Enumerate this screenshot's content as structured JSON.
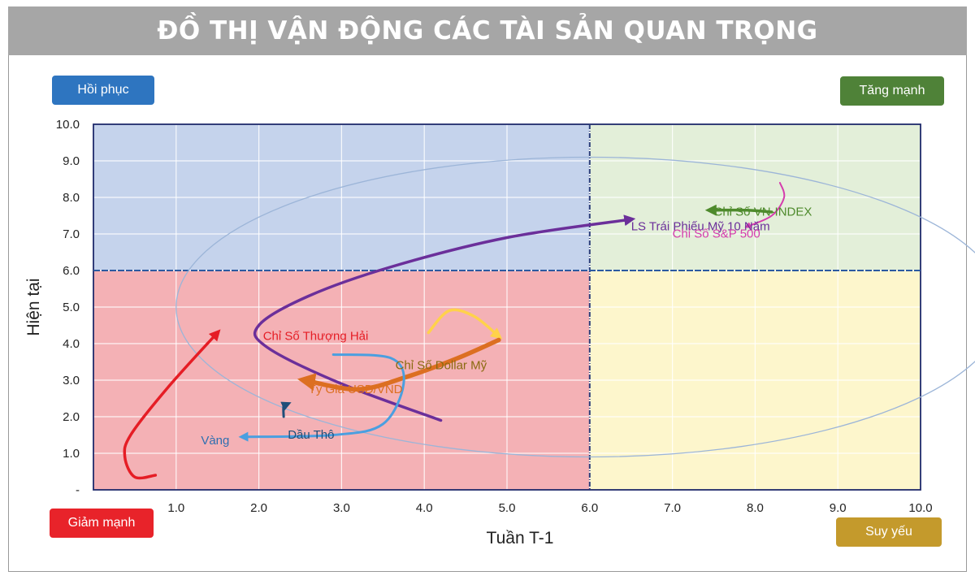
{
  "header": {
    "title": "ĐỒ THỊ VẬN ĐỘNG CÁC TÀI SẢN QUAN TRỌNG"
  },
  "quadrants": {
    "top_left": {
      "label": "Hồi phục",
      "color": "#2e75c0"
    },
    "top_right": {
      "label": "Tăng mạnh",
      "color": "#4f8238"
    },
    "bottom_left": {
      "label": "Giảm mạnh",
      "color": "#e8232a"
    },
    "bottom_right": {
      "label": "Suy yếu",
      "color": "#c49a2c"
    }
  },
  "chart_data": {
    "type": "line",
    "title": "ĐỒ THỊ VẬN ĐỘNG CÁC TÀI SẢN QUAN TRỌNG",
    "xlabel": "Tuần T-1",
    "ylabel": "Hiện tại",
    "xlim": [
      0,
      10
    ],
    "ylim": [
      0,
      10
    ],
    "x_ticks": [
      "1.0",
      "2.0",
      "3.0",
      "4.0",
      "5.0",
      "6.0",
      "7.0",
      "8.0",
      "9.0",
      "10.0"
    ],
    "y_ticks": [
      "-",
      "1.0",
      "2.0",
      "3.0",
      "4.0",
      "5.0",
      "6.0",
      "7.0",
      "8.0",
      "9.0",
      "10.0"
    ],
    "grid": true,
    "dividers": {
      "x": 6.0,
      "y": 6.0
    },
    "quadrant_fills": {
      "top_left": "#c5d3ec",
      "top_right": "#e3efd9",
      "bottom_left": "#f4b1b5",
      "bottom_right": "#fdf6cc"
    },
    "series": [
      {
        "name": "LS Trái Phiếu Mỹ 10 Năm",
        "color": "#6b2f9a",
        "width": 3.5,
        "points": [
          [
            4.2,
            1.9
          ],
          [
            3.0,
            2.9
          ],
          [
            2.1,
            3.9
          ],
          [
            2.0,
            4.5
          ],
          [
            2.6,
            5.3
          ],
          [
            3.6,
            6.1
          ],
          [
            5.0,
            6.9
          ],
          [
            6.5,
            7.4
          ]
        ]
      },
      {
        "name": "Chỉ Số VN-INDEX",
        "color": "#4e8a2c",
        "width": 3.5,
        "points": [
          [
            8.2,
            7.6
          ],
          [
            7.9,
            7.65
          ],
          [
            7.45,
            7.65
          ]
        ]
      },
      {
        "name": "Chỉ Số S&P 500",
        "color": "#d53cad",
        "width": 2,
        "points": [
          [
            8.3,
            8.4
          ],
          [
            8.35,
            8.0
          ],
          [
            8.2,
            7.5
          ],
          [
            7.9,
            7.2
          ]
        ]
      },
      {
        "name": "Chỉ Số Thượng Hải",
        "color": "#e51d25",
        "width": 3.5,
        "points": [
          [
            0.75,
            0.4
          ],
          [
            0.5,
            0.35
          ],
          [
            0.38,
            0.9
          ],
          [
            0.45,
            1.5
          ],
          [
            0.9,
            2.8
          ],
          [
            1.5,
            4.3
          ]
        ]
      },
      {
        "name": "Chỉ Số Dollar Mỹ",
        "color": "#ffd24a",
        "width": 3.5,
        "points": [
          [
            4.05,
            4.3
          ],
          [
            4.3,
            4.9
          ],
          [
            4.6,
            4.75
          ],
          [
            4.9,
            4.2
          ]
        ]
      },
      {
        "name": "Tỷ Giá USD/VND",
        "color": "#dc6f21",
        "width": 5.5,
        "points": [
          [
            4.9,
            4.1
          ],
          [
            4.4,
            3.6
          ],
          [
            3.8,
            3.1
          ],
          [
            3.2,
            2.75
          ],
          [
            2.55,
            3.0
          ]
        ]
      },
      {
        "name": "Vàng",
        "color": "#4a9fe0",
        "width": 3,
        "points": [
          [
            2.9,
            3.7
          ],
          [
            3.6,
            3.6
          ],
          [
            3.75,
            2.9
          ],
          [
            3.5,
            1.8
          ],
          [
            2.9,
            1.5
          ],
          [
            1.8,
            1.45
          ]
        ]
      },
      {
        "name": "Dầu Thô",
        "color": "#1f4e79",
        "width": 3,
        "points": [
          [
            2.3,
            2.0
          ],
          [
            2.3,
            2.3
          ],
          [
            2.35,
            2.35
          ]
        ]
      }
    ],
    "annotations": [
      {
        "text": "LS Trái Phiếu Mỹ 10 Năm",
        "x": 6.5,
        "y": 7.1,
        "color": "#6b2f9a"
      },
      {
        "text": "Chỉ Số VN-INDEX",
        "x": 7.5,
        "y": 7.5,
        "color": "#4e8a2c"
      },
      {
        "text": "Chỉ Số S&P 500",
        "x": 7.0,
        "y": 6.9,
        "color": "#d53cad"
      },
      {
        "text": "Chỉ Số Thượng Hải",
        "x": 2.05,
        "y": 4.1,
        "color": "#e51d25"
      },
      {
        "text": "Chỉ Số Dollar Mỹ",
        "x": 3.65,
        "y": 3.3,
        "color": "#8a6a10"
      },
      {
        "text": "Tỷ Giá USD/VND",
        "x": 2.6,
        "y": 2.65,
        "color": "#dc6f21"
      },
      {
        "text": "Vàng",
        "x": 1.3,
        "y": 1.25,
        "color": "#2f6fb0"
      },
      {
        "text": "Dầu Thô",
        "x": 2.35,
        "y": 1.4,
        "color": "#1f4e79"
      }
    ],
    "ellipse": {
      "cx": 6.0,
      "cy": 5.0,
      "rx": 5.0,
      "ry": 4.1,
      "color": "#9cb5d8"
    }
  }
}
